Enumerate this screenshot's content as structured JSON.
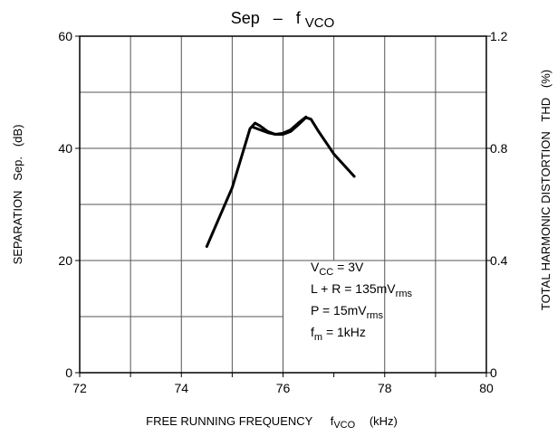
{
  "chart_data": {
    "type": "line",
    "title": {
      "main": "Sep",
      "dash": "–",
      "f": "f",
      "sub": "VCO"
    },
    "xlabel": {
      "main": "FREE RUNNING FREQUENCY",
      "f": "f",
      "sub": "VCO",
      "unit": "(kHz)"
    },
    "ylabel_left": "SEPARATION   Sep.   (dB)",
    "ylabel_right": "TOTAL HARMONIC DISTORTION   THD   (%)",
    "xlim": [
      72,
      80
    ],
    "ylim_left": [
      0,
      60
    ],
    "ylim_right": [
      0,
      1.2
    ],
    "x_ticks": [
      "72",
      "74",
      "76",
      "78",
      "80"
    ],
    "y_left_ticks": [
      "0",
      "20",
      "40",
      "60"
    ],
    "y_right_ticks": [
      "0",
      "0.4",
      "0.8",
      "1.2"
    ],
    "grid": true,
    "series": [
      {
        "x": [
          74.5,
          75.0,
          75.35,
          75.45,
          75.55,
          75.7,
          75.85,
          76.0,
          76.15,
          76.3,
          76.45,
          76.55,
          76.7,
          77.0,
          77.4
        ],
        "values": [
          22.5,
          33,
          43.5,
          44.5,
          44,
          43,
          42.5,
          42.5,
          43,
          44.2,
          45.5,
          45.2,
          43,
          39,
          35
        ]
      },
      {
        "x": [
          75.4,
          75.55,
          75.7,
          75.85,
          76.0,
          76.15,
          76.3,
          76.45
        ],
        "values": [
          43.8,
          43.3,
          42.8,
          42.5,
          42.7,
          43.3,
          44.5,
          45.6
        ]
      }
    ],
    "annotation": {
      "line1": {
        "main": "V",
        "sub": "CC",
        "rest": " = 3V"
      },
      "line2": {
        "main": "L + R = 135mV",
        "sub": "rms"
      },
      "line3": {
        "main": "P = 15mV",
        "sub": "rms"
      },
      "line4": {
        "main": "f",
        "sub": "m",
        "rest": " = 1kHz"
      }
    }
  }
}
